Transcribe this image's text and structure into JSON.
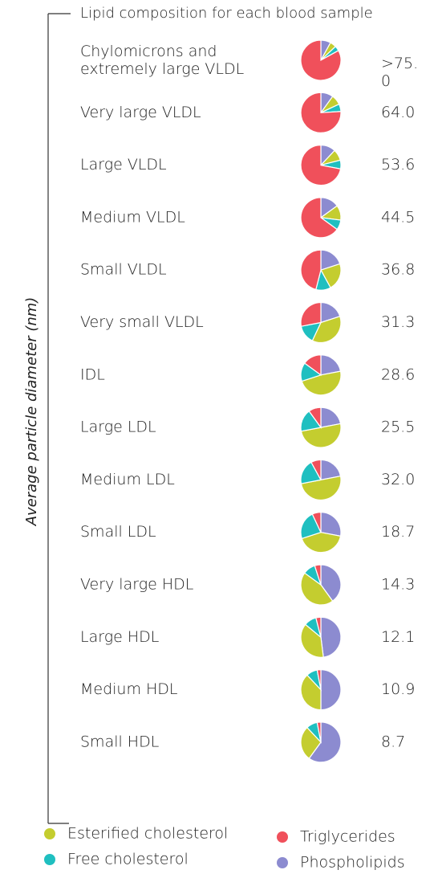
{
  "chart_data": {
    "type": "pie",
    "title": "Lipid composition for each blood sample",
    "y_label": "Average particle diameter (nm)",
    "categories": [
      "Chylomicrons and extremely large VLDL",
      "Very large VLDL",
      "Large VLDL",
      "Medium VLDL",
      "Small VLDL",
      "Very small VLDL",
      "IDL",
      "Large LDL",
      "Medium LDL",
      "Small LDL",
      "Very large HDL",
      "Large HDL",
      "Medium HDL",
      "Small HDL"
    ],
    "diameter_labels": [
      ">75.0",
      "64.0",
      "53.6",
      "44.5",
      "36.8",
      "31.3",
      "28.6",
      "25.5",
      "32.0",
      "18.7",
      "14.3",
      "12.1",
      "10.9",
      "8.7"
    ],
    "series": [
      {
        "name": "Esterified cholesterol",
        "color": "#c4cd2f",
        "values": [
          5,
          8,
          9,
          12,
          22,
          37,
          48,
          50,
          50,
          42,
          45,
          38,
          38,
          28
        ]
      },
      {
        "name": "Free cholesterol",
        "color": "#1fbfc0",
        "values": [
          4,
          6,
          7,
          8,
          12,
          15,
          15,
          18,
          20,
          23,
          10,
          10,
          9,
          9
        ]
      },
      {
        "name": "Triglycerides",
        "color": "#f0505b",
        "values": [
          83,
          76,
          72,
          65,
          46,
          28,
          15,
          10,
          8,
          7,
          5,
          4,
          3,
          3
        ]
      },
      {
        "name": "Phospholipids",
        "color": "#8c8bd0",
        "values": [
          8,
          10,
          12,
          15,
          20,
          20,
          22,
          22,
          22,
          28,
          40,
          48,
          50,
          60
        ]
      }
    ]
  }
}
